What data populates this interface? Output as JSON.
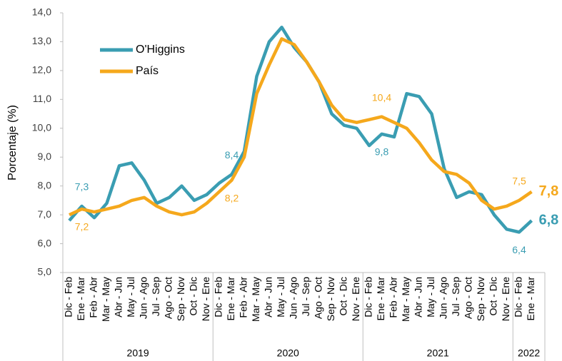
{
  "chart_data": {
    "type": "line",
    "y_label": "Porcentaje (%)",
    "categories": [
      "Dic - Feb",
      "Ene - Mar",
      "Feb - Abr",
      "Mar - May",
      "Abr - Jun",
      "May - Jul",
      "Jun - Ago",
      "Jul - Sep",
      "Ago - Oct",
      "Sep - Nov",
      "Oct - Dic",
      "Nov - Ene",
      "Dic - Feb",
      "Ene - Mar",
      "Feb - Abr",
      "Mar - May",
      "Abr - Jun",
      "May - Jul",
      "Jun - Ago",
      "Jul - Sep",
      "Ago - Oct",
      "Sep - Nov",
      "Oct - Dic",
      "Nov - Ene",
      "Dic - Feb",
      "Ene - Mar",
      "Feb - Abr",
      "Mar - May",
      "Abr - Jun",
      "May - Jul",
      "Jun - Ago",
      "Jul - Sep",
      "Ago - Oct",
      "Sep - Nov",
      "Oct - Dic",
      "Nov - Ene",
      "Dic - Feb",
      "Ene - Mar"
    ],
    "groups": [
      {
        "label": "2019",
        "size": 12
      },
      {
        "label": "2020",
        "size": 12
      },
      {
        "label": "2021",
        "size": 12
      },
      {
        "label": "2022",
        "size": 2
      }
    ],
    "series": [
      {
        "name": "O'Higgins",
        "color": "#3a9db2",
        "values": [
          6.8,
          7.3,
          6.9,
          7.4,
          8.7,
          8.8,
          8.2,
          7.4,
          7.6,
          8.0,
          7.5,
          7.7,
          8.1,
          8.4,
          9.2,
          11.8,
          13.0,
          13.5,
          12.8,
          12.3,
          11.6,
          10.5,
          10.1,
          10.0,
          9.4,
          9.8,
          9.7,
          11.2,
          11.1,
          10.5,
          8.6,
          7.6,
          7.8,
          7.7,
          7.0,
          6.5,
          6.4,
          6.8
        ],
        "value_labels": [
          null,
          "7,3",
          null,
          null,
          null,
          null,
          null,
          null,
          null,
          null,
          null,
          null,
          null,
          "8,4",
          null,
          null,
          null,
          null,
          null,
          null,
          null,
          null,
          null,
          null,
          null,
          "9,8",
          null,
          null,
          null,
          null,
          null,
          null,
          null,
          null,
          null,
          null,
          "6,4",
          "6,8"
        ]
      },
      {
        "name": "País",
        "color": "#f5a81c",
        "values": [
          7.0,
          7.2,
          7.1,
          7.2,
          7.3,
          7.5,
          7.6,
          7.3,
          7.1,
          7.0,
          7.1,
          7.4,
          7.8,
          8.2,
          9.0,
          11.2,
          12.2,
          13.1,
          12.9,
          12.3,
          11.6,
          10.8,
          10.3,
          10.2,
          10.3,
          10.4,
          10.2,
          10.0,
          9.5,
          8.9,
          8.5,
          8.4,
          8.1,
          7.5,
          7.2,
          7.3,
          7.5,
          7.8
        ],
        "value_labels": [
          null,
          "7,2",
          null,
          null,
          null,
          null,
          null,
          null,
          null,
          null,
          null,
          null,
          null,
          "8,2",
          null,
          null,
          null,
          null,
          null,
          null,
          null,
          null,
          null,
          null,
          null,
          "10,4",
          null,
          null,
          null,
          null,
          null,
          null,
          null,
          null,
          null,
          null,
          "7,5",
          "7,8"
        ]
      }
    ],
    "ylim": [
      5,
      14
    ],
    "yticks": [
      {
        "value": 5,
        "label": "5,0"
      },
      {
        "value": 6,
        "label": "6,0"
      },
      {
        "value": 7,
        "label": "7,0"
      },
      {
        "value": 8,
        "label": "8,0"
      },
      {
        "value": 9,
        "label": "9,0"
      },
      {
        "value": 10,
        "label": "10,0"
      },
      {
        "value": 11,
        "label": "11,0"
      },
      {
        "value": 12,
        "label": "12,0"
      },
      {
        "value": 13,
        "label": "13,0"
      },
      {
        "value": 14,
        "label": "14,0"
      }
    ],
    "legend": "upper left"
  }
}
